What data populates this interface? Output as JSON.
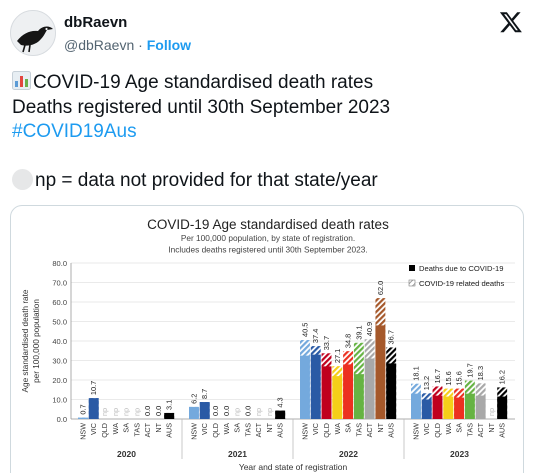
{
  "header": {
    "display_name": "dbRaevn",
    "handle": "@dbRaevn",
    "separator": "·",
    "follow_label": "Follow",
    "x_logo_icon": "x-logo-icon",
    "avatar_icon": "raven-avatar-icon"
  },
  "tweet": {
    "line1_emoji": "bar-chart-emoji",
    "line1_text": "COVID-19 Age standardised death rates",
    "line2": "Deaths registered until 30th September 2023",
    "hashtag": "#COVID19Aus",
    "line4_emoji": "white-circle-emoji",
    "line4_text": "np = data not provided for that state/year"
  },
  "colors": {
    "accent": "#1d9bf0",
    "text": "#0f1419",
    "muted": "#536471",
    "NSW": "#74a9dd",
    "VIC": "#2a5aa5",
    "QLD": "#c0001d",
    "WA": "#f5cf19",
    "SA": "#ec3020",
    "TAS": "#66b343",
    "ACT": "#a8a8a8",
    "NT": "#a5582a",
    "AUS": "#000000"
  },
  "chart_data": {
    "type": "bar",
    "title": "COVID-19 Age standardised death rates",
    "subtitle_lines": [
      "Per 100,000 population, by state of registration.",
      "Includes deaths registered until 30th September 2023."
    ],
    "xlabel": "Year and state of registration",
    "ylabel_lines": [
      "Age standardised death rate",
      "per 100,000 population"
    ],
    "ylim": [
      0,
      80
    ],
    "yticks": [
      "0.0",
      "10.0",
      "20.0",
      "30.0",
      "40.0",
      "50.0",
      "60.0",
      "70.0",
      "80.0"
    ],
    "states": [
      "NSW",
      "VIC",
      "QLD",
      "WA",
      "SA",
      "TAS",
      "ACT",
      "NT",
      "AUS"
    ],
    "legend": {
      "position": "top-right",
      "items": [
        "Deaths due to COVID-19",
        "COVID-19 related deaths"
      ]
    },
    "groups": [
      {
        "year": "2020",
        "values": [
          0.7,
          10.7,
          "np",
          "np",
          "np",
          "np",
          0.0,
          0.0,
          3.1
        ],
        "labels": [
          "0.7",
          "10.7",
          "np",
          "np",
          "np",
          "np",
          "0.0",
          "0.0",
          "3.1"
        ],
        "due": [
          0.7,
          10.7,
          null,
          null,
          null,
          null,
          0.0,
          0.0,
          3.1
        ]
      },
      {
        "year": "2021",
        "values": [
          6.2,
          8.7,
          0.0,
          0.0,
          "np",
          0.0,
          "np",
          "np",
          4.3
        ],
        "labels": [
          "6.2",
          "8.7",
          "0.0",
          "0.0",
          "np",
          "0.0",
          "np",
          "np",
          "4.3"
        ],
        "due": [
          6.2,
          8.7,
          0.0,
          0.0,
          null,
          0.0,
          null,
          null,
          4.3
        ]
      },
      {
        "year": "2022",
        "values": [
          40.5,
          37.4,
          33.7,
          27.1,
          34.8,
          39.1,
          40.9,
          62.0,
          36.7
        ],
        "labels": [
          "40.5",
          "37.4",
          "33.7",
          "27.1",
          "34.8",
          "39.1",
          "40.9",
          "62.0",
          "36.7"
        ],
        "due": [
          32.5,
          33.0,
          27.0,
          22.0,
          28.0,
          23.0,
          31.0,
          48.0,
          28.5
        ]
      },
      {
        "year": "2023",
        "values": [
          18.1,
          13.2,
          16.7,
          15.6,
          15.6,
          19.7,
          18.3,
          "np",
          16.2
        ],
        "labels": [
          "18.1",
          "13.2",
          "16.7",
          "15.6",
          "15.6",
          "19.7",
          "18.3",
          "np",
          "16.2"
        ],
        "due": [
          13.0,
          10.0,
          12.0,
          11.5,
          11.0,
          13.0,
          12.0,
          null,
          11.5
        ]
      }
    ]
  }
}
